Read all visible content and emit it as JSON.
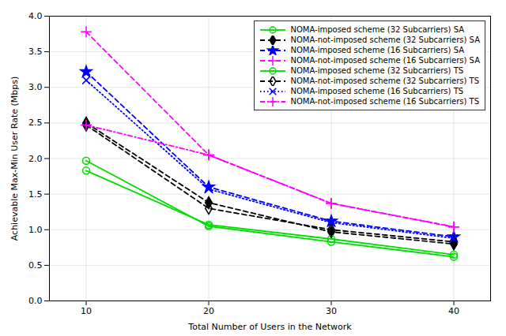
{
  "chart_data": {
    "type": "line",
    "x": [
      10,
      20,
      30,
      40
    ],
    "series": [
      {
        "name": "NOMA-imposed scheme (32 Subcarriers) SA",
        "color": "#00dd00",
        "marker": "circle-open",
        "line_style": "solid",
        "values": [
          1.97,
          1.05,
          0.83,
          0.62
        ]
      },
      {
        "name": "NOMA-not-imposed scheme (32 Subcarriers) SA",
        "color": "#000000",
        "marker": "diamond",
        "line_style": "dashed",
        "values": [
          2.5,
          1.38,
          0.97,
          0.8
        ]
      },
      {
        "name": "NOMA-imposed scheme (16 Subcarriers) SA",
        "color": "#0000ff",
        "marker": "star",
        "line_style": "dashed",
        "values": [
          3.22,
          1.6,
          1.12,
          0.9
        ]
      },
      {
        "name": "NOMA-not-imposed scheme (16 Subcarriers) SA",
        "color": "#ff00ff",
        "marker": "plus",
        "line_style": "dashed",
        "values": [
          3.78,
          2.05,
          1.37,
          1.04
        ]
      },
      {
        "name": "NOMA-imposed scheme (32 Subcarriers) TS",
        "color": "#00dd00",
        "marker": "circle-open",
        "line_style": "solid",
        "values": [
          1.83,
          1.07,
          0.87,
          0.65
        ]
      },
      {
        "name": "NOMA-not-imposed scheme (32 Subcarriers) TS",
        "color": "#000000",
        "marker": "diamond-open",
        "line_style": "dashed",
        "values": [
          2.47,
          1.3,
          1.0,
          0.83
        ]
      },
      {
        "name": "NOMA-imposed scheme (16 Subcarriers) TS",
        "color": "#0000ff",
        "marker": "times",
        "line_style": "dotted",
        "values": [
          3.1,
          1.57,
          1.1,
          0.88
        ]
      },
      {
        "name": "NOMA-not-imposed scheme (16 Subcarriers) TS",
        "color": "#ff00ff",
        "marker": "plus",
        "line_style": "dashdot",
        "values": [
          2.47,
          2.05,
          1.37,
          1.04
        ]
      }
    ],
    "xlabel": "Total Number of Users in the Network",
    "ylabel": "Achievable Max-Min User Rate (Mbps)",
    "xlim": [
      7,
      43
    ],
    "ylim": [
      0,
      4.0
    ],
    "xticks": [
      10,
      20,
      30,
      40
    ],
    "yticks": [
      {
        "value": 0,
        "label": "0.0"
      },
      0.5,
      {
        "value": 1.0,
        "label": "1.0"
      },
      1.5,
      {
        "value": 2.0,
        "label": "2.0"
      },
      2.5,
      {
        "value": 3.0,
        "label": "3.0"
      },
      3.5,
      {
        "value": 4.0,
        "label": "4.0"
      }
    ],
    "grid": true,
    "legend": "upper right"
  }
}
